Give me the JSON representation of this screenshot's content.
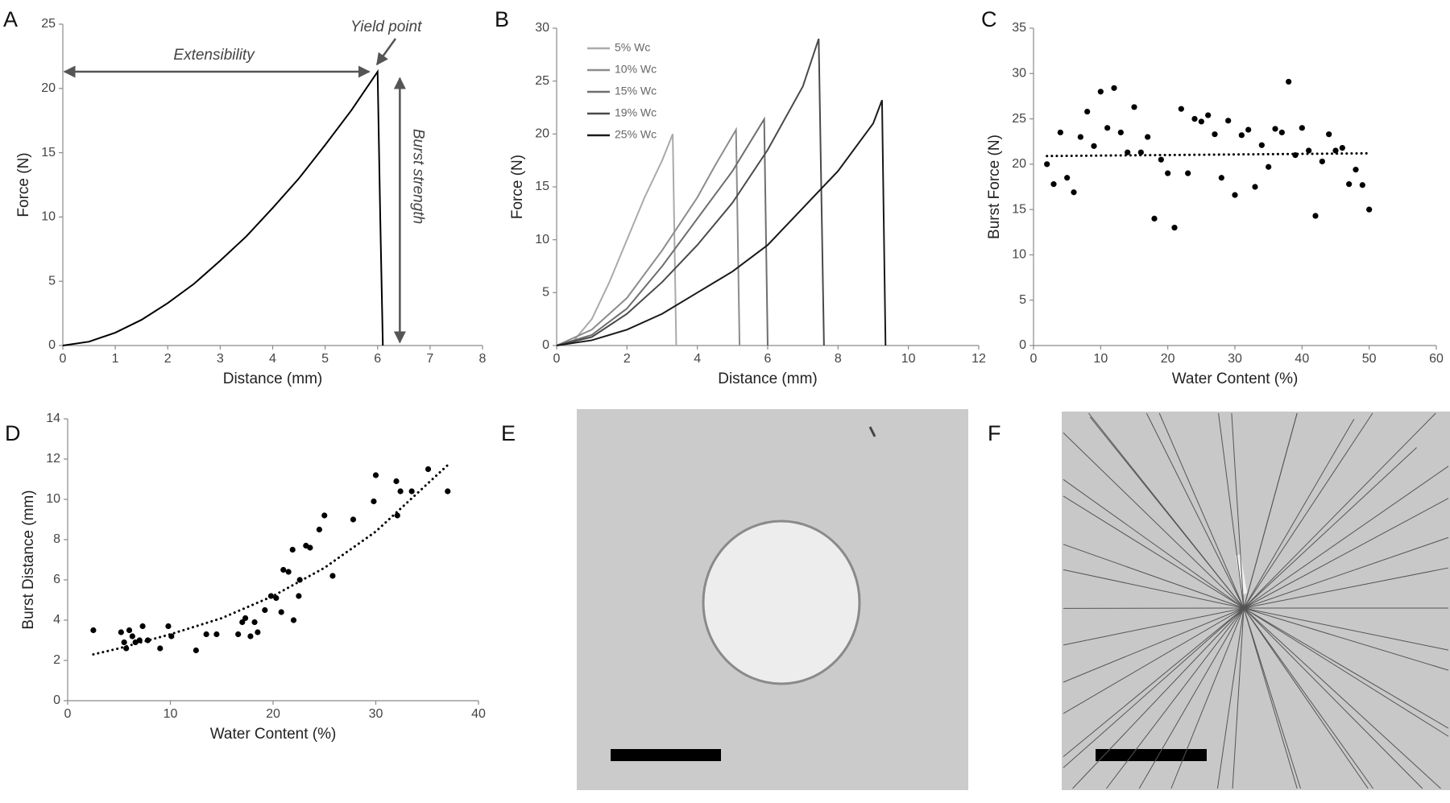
{
  "chart_data": [
    {
      "type": "line",
      "panel": "A",
      "xlabel": "Distance (mm)",
      "ylabel": "Force (N)",
      "xlim": [
        0,
        8
      ],
      "xticks": [
        0,
        1,
        2,
        3,
        4,
        5,
        6,
        7,
        8
      ],
      "ylim": [
        0,
        25
      ],
      "yticks": [
        0,
        5,
        10,
        15,
        20,
        25
      ],
      "color": "#000000",
      "x": [
        0,
        0.5,
        1,
        1.5,
        2,
        2.5,
        3,
        3.5,
        4,
        4.5,
        5,
        5.5,
        6,
        6.05,
        6.1
      ],
      "values": [
        0,
        0.3,
        1.0,
        2.0,
        3.3,
        4.8,
        6.6,
        8.5,
        10.7,
        13.0,
        15.6,
        18.3,
        21.3,
        10,
        0
      ],
      "annotations": [
        "Extensibility",
        "Yield point",
        "Burst strength"
      ]
    },
    {
      "type": "multiline",
      "panel": "B",
      "xlabel": "Distance (mm)",
      "ylabel": "Force (N)",
      "xlim": [
        0,
        12
      ],
      "xticks": [
        0,
        2,
        4,
        6,
        8,
        10,
        12
      ],
      "ylim": [
        0,
        30
      ],
      "yticks": [
        0,
        5,
        10,
        15,
        20,
        25,
        30
      ],
      "series": [
        {
          "name": "5% Wc",
          "color": "#aaaaaa",
          "x": [
            0,
            0.5,
            1,
            1.5,
            2,
            2.5,
            3,
            3.3,
            3.4
          ],
          "values": [
            0,
            0.5,
            2.5,
            6,
            10,
            14,
            17.5,
            20,
            0
          ]
        },
        {
          "name": "10% Wc",
          "color": "#8c8c8c",
          "x": [
            0,
            1,
            2,
            3,
            4,
            4.5,
            5.1,
            5.2
          ],
          "values": [
            0,
            1.5,
            4.5,
            9,
            14,
            17,
            20.4,
            0
          ]
        },
        {
          "name": "15% Wc",
          "color": "#6e6e6e",
          "x": [
            0,
            1,
            2,
            3,
            4,
            5,
            5.9,
            6.0
          ],
          "values": [
            0,
            1,
            3.5,
            7.5,
            12,
            16.5,
            21.4,
            0
          ]
        },
        {
          "name": "19% Wc",
          "color": "#4a4a4a",
          "x": [
            0,
            1,
            2,
            3,
            4,
            5,
            6,
            7,
            7.45,
            7.6
          ],
          "values": [
            0,
            0.8,
            3,
            6,
            9.5,
            13.5,
            18.5,
            24.5,
            29,
            0
          ]
        },
        {
          "name": "25% Wc",
          "color": "#1a1a1a",
          "x": [
            0,
            1,
            2,
            3,
            4,
            5,
            6,
            7,
            8,
            9,
            9.25,
            9.35
          ],
          "values": [
            0,
            0.5,
            1.5,
            3,
            5,
            7,
            9.5,
            13,
            16.5,
            21,
            23.2,
            0
          ]
        }
      ]
    },
    {
      "type": "scatter",
      "panel": "C",
      "xlabel": "Water Content (%)",
      "ylabel": "Burst Force (N)",
      "xlim": [
        0,
        60
      ],
      "xticks": [
        0,
        10,
        20,
        30,
        40,
        50,
        60
      ],
      "ylim": [
        0,
        35
      ],
      "yticks": [
        0,
        5,
        10,
        15,
        20,
        25,
        30,
        35
      ],
      "color": "#000000",
      "x": [
        2,
        3,
        4,
        5,
        6,
        7,
        8,
        9,
        10,
        11,
        12,
        13,
        14,
        15,
        16,
        17,
        18,
        19,
        20,
        21,
        22,
        23,
        24,
        25,
        26,
        27,
        28,
        29,
        30,
        31,
        32,
        33,
        34,
        35,
        36,
        37,
        38,
        39,
        40,
        41,
        42,
        43,
        44,
        45,
        46,
        47,
        48,
        49,
        50
      ],
      "values": [
        20,
        17.8,
        23.5,
        18.5,
        16.9,
        23,
        25.8,
        22,
        28,
        24,
        28.4,
        23.5,
        21.3,
        26.3,
        21.3,
        23,
        14,
        20.5,
        19,
        13,
        26.1,
        19,
        25,
        24.7,
        25.4,
        23.3,
        18.5,
        24.8,
        16.6,
        23.2,
        23.8,
        17.5,
        22.1,
        19.7,
        23.9,
        23.5,
        29.1,
        21,
        24,
        21.5,
        14.3,
        20.3,
        23.3,
        21.5,
        21.8,
        17.8,
        19.4,
        17.7,
        15
      ],
      "trendline": {
        "x": [
          2,
          50
        ],
        "values": [
          20.9,
          21.2
        ]
      }
    },
    {
      "type": "scatter",
      "panel": "D",
      "xlabel": "Water Content (%)",
      "ylabel": "Burst Distance (mm)",
      "xlim": [
        0,
        40
      ],
      "xticks": [
        0,
        10,
        20,
        30,
        40
      ],
      "ylim": [
        0,
        14
      ],
      "yticks": [
        0,
        2,
        4,
        6,
        8,
        10,
        12,
        14
      ],
      "color": "#000000",
      "x": [
        2.5,
        5.2,
        5.5,
        5.7,
        6,
        6.3,
        6.6,
        7,
        7.3,
        7.8,
        9,
        9.8,
        10.1,
        12.5,
        13.5,
        14.5,
        16.6,
        17,
        17.3,
        17.8,
        18.2,
        18.5,
        19.2,
        19.8,
        20.3,
        20.8,
        21,
        21.5,
        21.9,
        22,
        22.6,
        22.5,
        23.2,
        23.6,
        24.5,
        25,
        25.8,
        27.8,
        29.8,
        30,
        32,
        32.1,
        32.4,
        33.5,
        35.1,
        37
      ],
      "values": [
        3.5,
        3.4,
        2.9,
        2.6,
        3.5,
        3.2,
        2.9,
        3,
        3.7,
        3,
        2.6,
        3.7,
        3.2,
        2.5,
        3.3,
        3.3,
        3.3,
        3.9,
        4.1,
        3.2,
        3.9,
        3.4,
        4.5,
        5.2,
        5.1,
        4.4,
        6.5,
        6.4,
        7.5,
        4,
        6,
        5.2,
        7.7,
        7.6,
        8.5,
        9.2,
        6.2,
        9,
        9.9,
        11.2,
        10.9,
        9.2,
        10.4,
        10.4,
        11.5,
        10.4
      ],
      "trendline": {
        "x": [
          2.5,
          5,
          10,
          15,
          20,
          25,
          30,
          37
        ],
        "values": [
          2.3,
          2.6,
          3.3,
          4.1,
          5.2,
          6.6,
          8.4,
          11.7
        ]
      }
    },
    {
      "type": "image",
      "panel": "E"
    },
    {
      "type": "image",
      "panel": "F"
    }
  ]
}
